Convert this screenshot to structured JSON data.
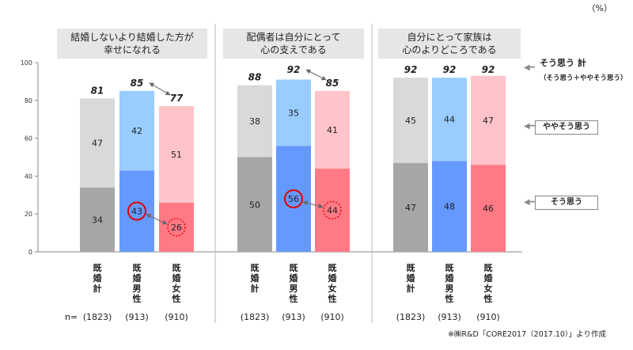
{
  "unit": "（%）",
  "source": "※㈱R&D「CORE2017（2017.10）」より作成",
  "n_label": "n=",
  "legend": {
    "total_main": "そう思う 計",
    "total_sub": "（そう思う＋ややそう思う）",
    "somewhat": "ややそう思う",
    "agree": "そう思う"
  },
  "categories": [
    "既婚計",
    "既婚男性",
    "既婚女性"
  ],
  "n_values": [
    "(1823)",
    "(913)",
    "(910)"
  ],
  "colors": {
    "agree": [
      "#a6a6a6",
      "#6699ff",
      "#ff7a85"
    ],
    "somewhat": [
      "#d9d9d9",
      "#99ccff",
      "#ffc4c9"
    ],
    "highlight": "#e00000",
    "title_bg": "#e6e6e6"
  },
  "chart_data": {
    "type": "bar",
    "stacked": true,
    "ylim": [
      0,
      100
    ],
    "yticks": [
      0,
      20,
      40,
      60,
      80,
      100
    ],
    "groups": [
      {
        "title": "結婚しないより結婚した方が\n幸せになれる",
        "series": [
          {
            "name": "そう思う",
            "values": [
              34,
              43,
              26
            ]
          },
          {
            "name": "ややそう思う",
            "values": [
              47,
              42,
              51
            ]
          }
        ],
        "totals": [
          81,
          85,
          77
        ],
        "circled": {
          "solid": 1,
          "dashed": 2
        }
      },
      {
        "title": "配偶者は自分にとって\n心の支えである",
        "series": [
          {
            "name": "そう思う",
            "values": [
              50,
              56,
              44
            ]
          },
          {
            "name": "ややそう思う",
            "values": [
              38,
              35,
              41
            ]
          }
        ],
        "totals": [
          88,
          92,
          85
        ],
        "circled": {
          "solid": 1,
          "dashed": 2
        }
      },
      {
        "title": "自分にとって家族は\n心のよりどころである",
        "series": [
          {
            "name": "そう思う",
            "values": [
              47,
              48,
              46
            ]
          },
          {
            "name": "ややそう思う",
            "values": [
              45,
              44,
              47
            ]
          }
        ],
        "totals": [
          92,
          92,
          92
        ],
        "circled": null
      }
    ]
  }
}
